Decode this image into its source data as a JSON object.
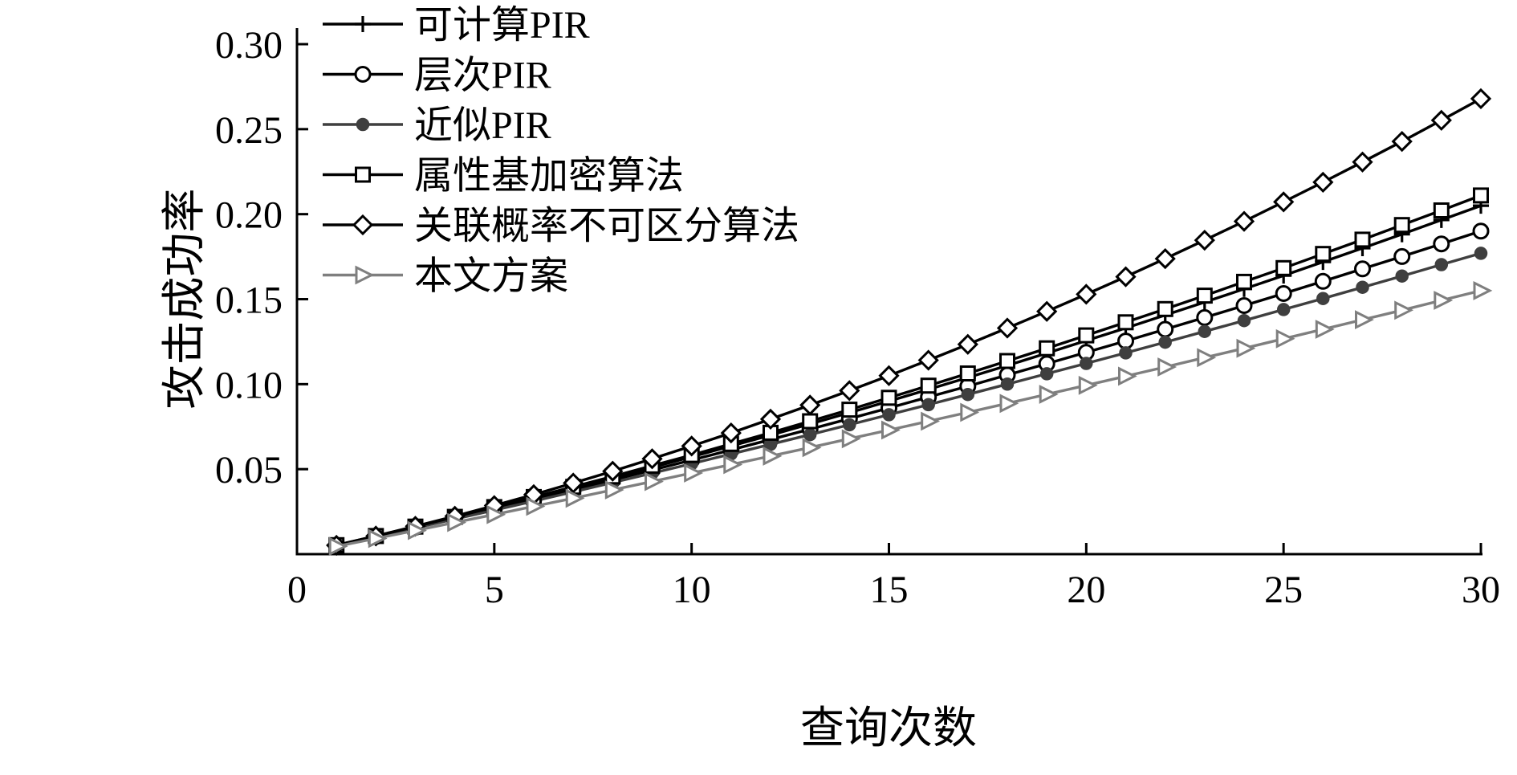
{
  "chart_data": {
    "type": "line",
    "xlabel": "查询次数",
    "ylabel": "攻击成功率",
    "xlim": [
      0,
      30
    ],
    "ylim": [
      0,
      0.3
    ],
    "xticks": [
      0,
      5,
      10,
      15,
      20,
      25,
      30
    ],
    "yticks": [
      0.05,
      0.1,
      0.15,
      0.2,
      0.25,
      0.3
    ],
    "grid": false,
    "legend_position": "top-left",
    "x": [
      1,
      2,
      3,
      4,
      5,
      6,
      7,
      8,
      9,
      10,
      11,
      12,
      13,
      14,
      15,
      16,
      17,
      18,
      19,
      20,
      21,
      22,
      23,
      24,
      25,
      26,
      27,
      28,
      29,
      30
    ],
    "series": [
      {
        "name": "可计算PIR",
        "marker": "plus",
        "color": "#000000",
        "values": [
          0.0052,
          0.0106,
          0.016,
          0.0216,
          0.0272,
          0.033,
          0.0389,
          0.0449,
          0.051,
          0.0572,
          0.0636,
          0.07,
          0.0766,
          0.0832,
          0.09,
          0.0969,
          0.1039,
          0.111,
          0.1182,
          0.1256,
          0.133,
          0.1406,
          0.1482,
          0.156,
          0.1639,
          0.1719,
          0.18,
          0.1882,
          0.1966,
          0.205
        ]
      },
      {
        "name": "层次PIR",
        "marker": "circle-open",
        "color": "#000000",
        "values": [
          0.0052,
          0.0104,
          0.0158,
          0.0212,
          0.0267,
          0.0322,
          0.0379,
          0.0436,
          0.0494,
          0.0553,
          0.0613,
          0.0674,
          0.0735,
          0.0797,
          0.086,
          0.0924,
          0.0988,
          0.1054,
          0.112,
          0.1187,
          0.1254,
          0.1323,
          0.1392,
          0.1462,
          0.1533,
          0.1605,
          0.1678,
          0.1751,
          0.1825,
          0.19
        ]
      },
      {
        "name": "近似PIR",
        "marker": "circle-filled",
        "color": "#3f3f3f",
        "values": [
          0.0051,
          0.0102,
          0.0154,
          0.0206,
          0.0259,
          0.0312,
          0.0366,
          0.0421,
          0.0476,
          0.0532,
          0.0589,
          0.0646,
          0.0703,
          0.0761,
          0.082,
          0.0879,
          0.0939,
          0.1,
          0.1061,
          0.1122,
          0.1184,
          0.1247,
          0.131,
          0.1374,
          0.1439,
          0.1504,
          0.157,
          0.1636,
          0.1703,
          0.177
        ]
      },
      {
        "name": "属性基加密算法",
        "marker": "square-open",
        "color": "#000000",
        "values": [
          0.0053,
          0.0107,
          0.0162,
          0.0219,
          0.0277,
          0.0336,
          0.0396,
          0.0457,
          0.052,
          0.0583,
          0.0648,
          0.0714,
          0.0782,
          0.085,
          0.092,
          0.0991,
          0.1063,
          0.1136,
          0.1211,
          0.1287,
          0.1364,
          0.1442,
          0.1521,
          0.1602,
          0.1683,
          0.1766,
          0.185,
          0.1936,
          0.2022,
          0.211
        ]
      },
      {
        "name": "关联概率不可区分算法",
        "marker": "diamond-open",
        "color": "#000000",
        "values": [
          0.0052,
          0.0107,
          0.0164,
          0.0223,
          0.0286,
          0.035,
          0.0418,
          0.0488,
          0.0561,
          0.0636,
          0.0713,
          0.0794,
          0.0877,
          0.0962,
          0.105,
          0.1141,
          0.1234,
          0.133,
          0.1428,
          0.1529,
          0.1632,
          0.1738,
          0.1847,
          0.1958,
          0.2072,
          0.2188,
          0.2307,
          0.2428,
          0.2552,
          0.2679
        ]
      },
      {
        "name": "本文方案",
        "marker": "triangle-right",
        "color": "#7f7f7f",
        "values": [
          0.0046,
          0.0092,
          0.0139,
          0.0186,
          0.0233,
          0.0281,
          0.0329,
          0.0378,
          0.0427,
          0.0477,
          0.0527,
          0.0577,
          0.0627,
          0.0679,
          0.073,
          0.0782,
          0.0834,
          0.0887,
          0.094,
          0.0993,
          0.1047,
          0.1101,
          0.1156,
          0.1211,
          0.1267,
          0.1323,
          0.1379,
          0.1435,
          0.1493,
          0.155
        ]
      }
    ]
  }
}
